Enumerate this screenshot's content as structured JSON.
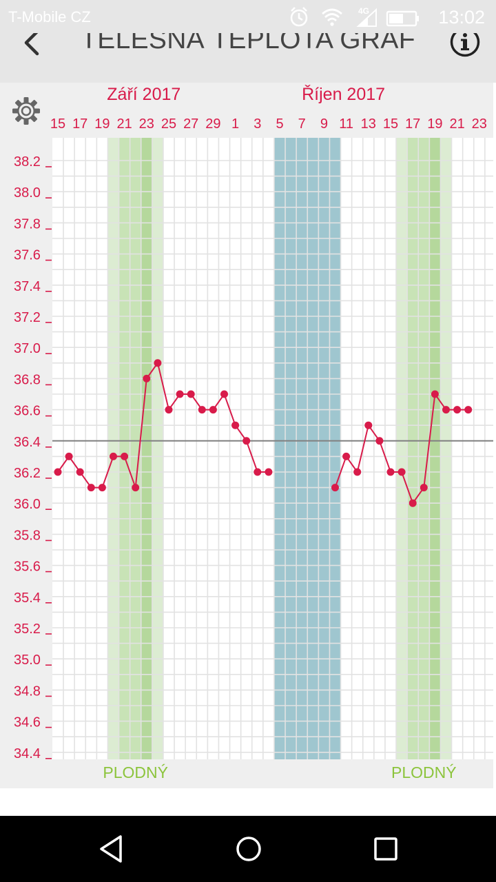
{
  "status_bar": {
    "carrier": "T-Mobile CZ",
    "network": "4G",
    "time": "13:02",
    "icons": [
      "alarm-icon",
      "wifi-icon",
      "signal-icon",
      "battery-icon"
    ]
  },
  "app_bar": {
    "title": "TĚLESNÁ TEPLOTA GRAF",
    "back_icon": "chevron-left-icon",
    "info_icon": "info-icon"
  },
  "settings_icon": "gear-icon",
  "colors": {
    "accent": "#d81b4a",
    "fertile_light": "#dcecd2",
    "fertile_mid": "#c8e3b6",
    "fertile_dark": "#b5d89c",
    "period": "#9fc6cf",
    "fertile_text": "#8cc43c",
    "baseline": "#808080",
    "panel": "#efefef"
  },
  "chart_data": {
    "type": "line",
    "month_labels": [
      {
        "label": "Září 2017",
        "day_index": 8
      },
      {
        "label": "Říjen 2017",
        "day_index": 26
      }
    ],
    "x_tick_labels": [
      {
        "label": "15",
        "day_index": 0
      },
      {
        "label": "17",
        "day_index": 2
      },
      {
        "label": "19",
        "day_index": 4
      },
      {
        "label": "21",
        "day_index": 6
      },
      {
        "label": "23",
        "day_index": 8
      },
      {
        "label": "25",
        "day_index": 10
      },
      {
        "label": "27",
        "day_index": 12
      },
      {
        "label": "29",
        "day_index": 14
      },
      {
        "label": "1",
        "day_index": 16
      },
      {
        "label": "3",
        "day_index": 18
      },
      {
        "label": "5",
        "day_index": 20
      },
      {
        "label": "7",
        "day_index": 22
      },
      {
        "label": "9",
        "day_index": 24
      },
      {
        "label": "11",
        "day_index": 26
      },
      {
        "label": "13",
        "day_index": 28
      },
      {
        "label": "15",
        "day_index": 30
      },
      {
        "label": "17",
        "day_index": 32
      },
      {
        "label": "19",
        "day_index": 34
      },
      {
        "label": "21",
        "day_index": 36
      },
      {
        "label": "23",
        "day_index": 38
      }
    ],
    "y_ticks": [
      38.2,
      38.0,
      37.8,
      37.6,
      37.4,
      37.2,
      37.0,
      36.8,
      36.6,
      36.4,
      36.2,
      36.0,
      35.8,
      35.6,
      35.4,
      35.2,
      35.0,
      34.8,
      34.6,
      34.4
    ],
    "ylim": [
      34.4,
      38.2
    ],
    "baseline": 36.4,
    "series": [
      {
        "values": [
          {
            "day_index": 0,
            "value": 36.2
          },
          {
            "day_index": 1,
            "value": 36.3
          },
          {
            "day_index": 2,
            "value": 36.2
          },
          {
            "day_index": 3,
            "value": 36.1
          },
          {
            "day_index": 4,
            "value": 36.1
          },
          {
            "day_index": 5,
            "value": 36.3
          },
          {
            "day_index": 6,
            "value": 36.3
          },
          {
            "day_index": 7,
            "value": 36.1
          },
          {
            "day_index": 8,
            "value": 36.8
          },
          {
            "day_index": 9,
            "value": 36.9
          },
          {
            "day_index": 10,
            "value": 36.6
          },
          {
            "day_index": 11,
            "value": 36.7
          },
          {
            "day_index": 12,
            "value": 36.7
          },
          {
            "day_index": 13,
            "value": 36.6
          },
          {
            "day_index": 14,
            "value": 36.6
          },
          {
            "day_index": 15,
            "value": 36.7
          },
          {
            "day_index": 16,
            "value": 36.5
          },
          {
            "day_index": 17,
            "value": 36.4
          },
          {
            "day_index": 18,
            "value": 36.2
          },
          {
            "day_index": 19,
            "value": 36.2
          },
          {
            "day_index": 25,
            "value": 36.1
          },
          {
            "day_index": 26,
            "value": 36.3
          },
          {
            "day_index": 27,
            "value": 36.2
          },
          {
            "day_index": 28,
            "value": 36.5
          },
          {
            "day_index": 29,
            "value": 36.4
          },
          {
            "day_index": 30,
            "value": 36.2
          },
          {
            "day_index": 31,
            "value": 36.2
          },
          {
            "day_index": 32,
            "value": 36.0
          },
          {
            "day_index": 33,
            "value": 36.1
          },
          {
            "day_index": 34,
            "value": 36.7
          },
          {
            "day_index": 35,
            "value": 36.6
          },
          {
            "day_index": 36,
            "value": 36.6
          },
          {
            "day_index": 37,
            "value": 36.6
          }
        ]
      }
    ],
    "fertile_windows": [
      {
        "start_day_index": 4.5,
        "days": [
          {
            "offset": 0,
            "tone": "light"
          },
          {
            "offset": 1,
            "tone": "mid"
          },
          {
            "offset": 2,
            "tone": "mid"
          },
          {
            "offset": 3,
            "tone": "dark"
          },
          {
            "offset": 4,
            "tone": "light"
          }
        ],
        "label": "PLODNÝ"
      },
      {
        "start_day_index": 30.5,
        "days": [
          {
            "offset": 0,
            "tone": "light"
          },
          {
            "offset": 1,
            "tone": "mid"
          },
          {
            "offset": 2,
            "tone": "mid"
          },
          {
            "offset": 3,
            "tone": "dark"
          },
          {
            "offset": 4,
            "tone": "light"
          }
        ],
        "label": "PLODNÝ"
      }
    ],
    "period_window": {
      "start_day_index": 19.5,
      "end_day_index": 25.5
    },
    "grid": true,
    "legend": "none"
  }
}
